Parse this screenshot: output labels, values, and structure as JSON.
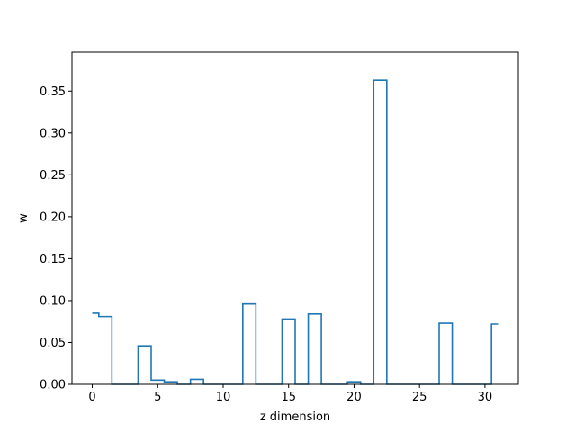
{
  "chart_data": {
    "type": "line",
    "style": "step-mid",
    "title": "",
    "xlabel": "z dimension",
    "ylabel": "w",
    "xlim": [
      -1.55,
      32.55
    ],
    "ylim": [
      0,
      0.3965
    ],
    "xticks": [
      0,
      5,
      10,
      15,
      20,
      25,
      30
    ],
    "yticks": [
      0.0,
      0.05,
      0.1,
      0.15,
      0.2,
      0.25,
      0.3,
      0.35
    ],
    "ytick_labels": [
      "0.00",
      "0.05",
      "0.10",
      "0.15",
      "0.20",
      "0.25",
      "0.30",
      "0.35"
    ],
    "grid": false,
    "series": [
      {
        "color": "#1f77b4",
        "x": [
          0,
          1,
          2,
          3,
          4,
          5,
          6,
          7,
          8,
          9,
          10,
          11,
          12,
          13,
          14,
          15,
          16,
          17,
          18,
          19,
          20,
          21,
          22,
          23,
          24,
          25,
          26,
          27,
          28,
          29,
          30,
          31
        ],
        "values": [
          0.085,
          0.081,
          0,
          0,
          0.046,
          0.005,
          0.003,
          0,
          0.006,
          0,
          0,
          0,
          0.096,
          0,
          0,
          0.078,
          0,
          0.084,
          0,
          0,
          0.003,
          0,
          0.363,
          0,
          0,
          0,
          0,
          0.073,
          0,
          0,
          0,
          0.072
        ]
      }
    ]
  }
}
